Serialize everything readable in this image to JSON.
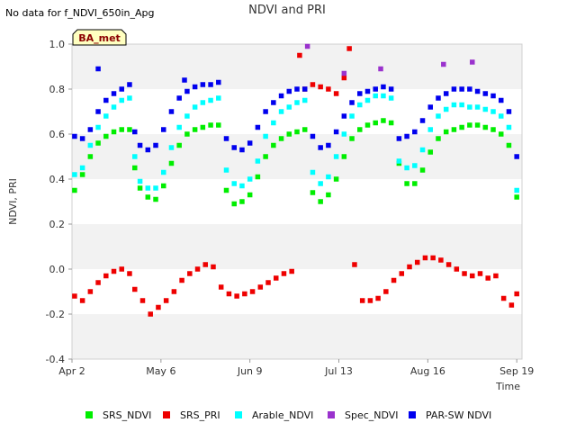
{
  "note": "No data for f_NDVI_650in_Apg",
  "badge": "BA_met",
  "colors": {
    "SRS_NDVI": "#00ee00",
    "SRS_PRI": "#ee0000",
    "Arable_NDVI": "#00ffff",
    "Spec_NDVI": "#9a32cd",
    "PAR-SW NDVI": "#0000ee"
  },
  "chart_data": {
    "type": "scatter",
    "title": "NDVI and PRI",
    "xlabel": "Time",
    "ylabel": "NDVI, PRI",
    "ylim": [
      -0.4,
      1.0
    ],
    "xlim": [
      "2024-04-02",
      "2024-09-21"
    ],
    "yticks": [
      "-0.4",
      "-0.2",
      "0.0",
      "0.2",
      "0.4",
      "0.6",
      "0.8",
      "1.0"
    ],
    "xticks": [
      {
        "date": "2024-04-02",
        "label": "Apr 2"
      },
      {
        "date": "2024-05-06",
        "label": "May 6"
      },
      {
        "date": "2024-06-09",
        "label": "Jun 9"
      },
      {
        "date": "2024-07-13",
        "label": "Jul 13"
      },
      {
        "date": "2024-08-16",
        "label": "Aug 16"
      },
      {
        "date": "2024-09-19",
        "label": "Sep 19"
      }
    ],
    "grid": "alternating horizontal bands",
    "legend": "bottom",
    "series": [
      {
        "name": "SRS_NDVI",
        "x": [
          "2024-04-03",
          "2024-04-06",
          "2024-04-09",
          "2024-04-12",
          "2024-04-15",
          "2024-04-18",
          "2024-04-21",
          "2024-04-24",
          "2024-04-26",
          "2024-04-28",
          "2024-05-01",
          "2024-05-04",
          "2024-05-07",
          "2024-05-10",
          "2024-05-13",
          "2024-05-16",
          "2024-05-19",
          "2024-05-22",
          "2024-05-25",
          "2024-05-28",
          "2024-05-31",
          "2024-06-03",
          "2024-06-06",
          "2024-06-09",
          "2024-06-12",
          "2024-06-15",
          "2024-06-18",
          "2024-06-21",
          "2024-06-24",
          "2024-06-27",
          "2024-06-30",
          "2024-07-03",
          "2024-07-06",
          "2024-07-09",
          "2024-07-12",
          "2024-07-15",
          "2024-07-18",
          "2024-07-21",
          "2024-07-24",
          "2024-07-27",
          "2024-07-30",
          "2024-08-02",
          "2024-08-05",
          "2024-08-08",
          "2024-08-11",
          "2024-08-14",
          "2024-08-17",
          "2024-08-20",
          "2024-08-23",
          "2024-08-26",
          "2024-08-29",
          "2024-09-01",
          "2024-09-04",
          "2024-09-07",
          "2024-09-10",
          "2024-09-13",
          "2024-09-16",
          "2024-09-19"
        ],
        "y": [
          0.35,
          0.42,
          0.5,
          0.56,
          0.59,
          0.61,
          0.62,
          0.62,
          0.45,
          0.36,
          0.32,
          0.31,
          0.37,
          0.47,
          0.55,
          0.6,
          0.62,
          0.63,
          0.64,
          0.64,
          0.35,
          0.29,
          0.3,
          0.33,
          0.41,
          0.5,
          0.55,
          0.58,
          0.6,
          0.61,
          0.62,
          0.34,
          0.3,
          0.33,
          0.4,
          0.5,
          0.58,
          0.62,
          0.64,
          0.65,
          0.66,
          0.65,
          0.47,
          0.38,
          0.38,
          0.44,
          0.52,
          0.58,
          0.61,
          0.62,
          0.63,
          0.64,
          0.64,
          0.63,
          0.62,
          0.6,
          0.55,
          0.32
        ]
      },
      {
        "name": "SRS_PRI",
        "x": [
          "2024-04-03",
          "2024-04-06",
          "2024-04-09",
          "2024-04-12",
          "2024-04-15",
          "2024-04-18",
          "2024-04-21",
          "2024-04-24",
          "2024-04-26",
          "2024-04-29",
          "2024-05-02",
          "2024-05-05",
          "2024-05-08",
          "2024-05-11",
          "2024-05-14",
          "2024-05-17",
          "2024-05-20",
          "2024-05-23",
          "2024-05-26",
          "2024-05-29",
          "2024-06-01",
          "2024-06-04",
          "2024-06-07",
          "2024-06-10",
          "2024-06-13",
          "2024-06-16",
          "2024-06-19",
          "2024-06-22",
          "2024-06-25",
          "2024-06-28",
          "2024-06-30",
          "2024-07-03",
          "2024-07-06",
          "2024-07-09",
          "2024-07-12",
          "2024-07-15",
          "2024-07-17",
          "2024-07-19",
          "2024-07-22",
          "2024-07-25",
          "2024-07-28",
          "2024-07-31",
          "2024-08-03",
          "2024-08-06",
          "2024-08-09",
          "2024-08-12",
          "2024-08-15",
          "2024-08-18",
          "2024-08-21",
          "2024-08-24",
          "2024-08-27",
          "2024-08-30",
          "2024-09-02",
          "2024-09-05",
          "2024-09-08",
          "2024-09-11",
          "2024-09-14",
          "2024-09-17",
          "2024-09-19"
        ],
        "y": [
          -0.12,
          -0.14,
          -0.1,
          -0.06,
          -0.03,
          -0.01,
          0.0,
          -0.02,
          -0.09,
          -0.14,
          -0.2,
          -0.17,
          -0.14,
          -0.1,
          -0.05,
          -0.02,
          0.0,
          0.02,
          0.01,
          -0.08,
          -0.11,
          -0.12,
          -0.11,
          -0.1,
          -0.08,
          -0.06,
          -0.04,
          -0.02,
          -0.01,
          0.95,
          0.8,
          0.82,
          0.81,
          0.8,
          0.78,
          0.85,
          0.98,
          0.02,
          -0.14,
          -0.14,
          -0.13,
          -0.1,
          -0.05,
          -0.02,
          0.01,
          0.03,
          0.05,
          0.05,
          0.04,
          0.02,
          0.0,
          -0.02,
          -0.03,
          -0.02,
          -0.04,
          -0.03,
          -0.13,
          -0.16,
          -0.11
        ]
      },
      {
        "name": "Arable_NDVI",
        "x": [
          "2024-04-03",
          "2024-04-06",
          "2024-04-09",
          "2024-04-12",
          "2024-04-15",
          "2024-04-18",
          "2024-04-21",
          "2024-04-24",
          "2024-04-26",
          "2024-04-28",
          "2024-05-01",
          "2024-05-04",
          "2024-05-07",
          "2024-05-10",
          "2024-05-13",
          "2024-05-16",
          "2024-05-19",
          "2024-05-22",
          "2024-05-25",
          "2024-05-28",
          "2024-05-31",
          "2024-06-03",
          "2024-06-06",
          "2024-06-09",
          "2024-06-12",
          "2024-06-15",
          "2024-06-18",
          "2024-06-21",
          "2024-06-24",
          "2024-06-27",
          "2024-06-30",
          "2024-07-03",
          "2024-07-06",
          "2024-07-09",
          "2024-07-12",
          "2024-07-15",
          "2024-07-18",
          "2024-07-21",
          "2024-07-24",
          "2024-07-27",
          "2024-07-30",
          "2024-08-02",
          "2024-08-05",
          "2024-08-08",
          "2024-08-11",
          "2024-08-14",
          "2024-08-17",
          "2024-08-20",
          "2024-08-23",
          "2024-08-26",
          "2024-08-29",
          "2024-09-01",
          "2024-09-04",
          "2024-09-07",
          "2024-09-10",
          "2024-09-13",
          "2024-09-16",
          "2024-09-19"
        ],
        "y": [
          0.42,
          0.45,
          0.55,
          0.63,
          0.68,
          0.72,
          0.75,
          0.76,
          0.5,
          0.39,
          0.36,
          0.36,
          0.43,
          0.54,
          0.63,
          0.68,
          0.72,
          0.74,
          0.75,
          0.76,
          0.44,
          0.38,
          0.37,
          0.4,
          0.48,
          0.59,
          0.65,
          0.7,
          0.72,
          0.74,
          0.75,
          0.43,
          0.38,
          0.41,
          0.5,
          0.6,
          0.68,
          0.73,
          0.75,
          0.77,
          0.77,
          0.76,
          0.48,
          0.45,
          0.46,
          0.53,
          0.62,
          0.68,
          0.71,
          0.73,
          0.73,
          0.72,
          0.72,
          0.71,
          0.7,
          0.68,
          0.63,
          0.35
        ]
      },
      {
        "name": "Spec_NDVI",
        "x": [
          "2024-07-01",
          "2024-07-15",
          "2024-07-29",
          "2024-08-22",
          "2024-09-02"
        ],
        "y": [
          0.99,
          0.87,
          0.89,
          0.91,
          0.92
        ]
      },
      {
        "name": "PAR-SW NDVI",
        "x": [
          "2024-04-03",
          "2024-04-06",
          "2024-04-09",
          "2024-04-12",
          "2024-04-15",
          "2024-04-18",
          "2024-04-21",
          "2024-04-24",
          "2024-04-26",
          "2024-04-28",
          "2024-05-01",
          "2024-05-04",
          "2024-05-07",
          "2024-05-10",
          "2024-05-13",
          "2024-05-16",
          "2024-05-19",
          "2024-05-22",
          "2024-05-25",
          "2024-05-28",
          "2024-05-31",
          "2024-06-03",
          "2024-06-06",
          "2024-06-09",
          "2024-06-12",
          "2024-06-15",
          "2024-06-18",
          "2024-06-21",
          "2024-06-24",
          "2024-06-27",
          "2024-06-30",
          "2024-07-03",
          "2024-07-06",
          "2024-07-09",
          "2024-07-12",
          "2024-07-15",
          "2024-07-18",
          "2024-07-21",
          "2024-07-24",
          "2024-07-27",
          "2024-07-30",
          "2024-08-02",
          "2024-08-05",
          "2024-08-08",
          "2024-08-11",
          "2024-08-14",
          "2024-08-17",
          "2024-08-20",
          "2024-08-23",
          "2024-08-26",
          "2024-08-29",
          "2024-09-01",
          "2024-09-04",
          "2024-09-07",
          "2024-09-10",
          "2024-09-13",
          "2024-09-16",
          "2024-09-19",
          "2024-04-12",
          "2024-05-15"
        ],
        "y": [
          0.59,
          0.58,
          0.62,
          0.7,
          0.75,
          0.78,
          0.8,
          0.82,
          0.61,
          0.55,
          0.53,
          0.55,
          0.62,
          0.7,
          0.76,
          0.79,
          0.81,
          0.82,
          0.82,
          0.83,
          0.58,
          0.54,
          0.53,
          0.56,
          0.63,
          0.7,
          0.74,
          0.77,
          0.79,
          0.8,
          0.8,
          0.59,
          0.54,
          0.55,
          0.61,
          0.68,
          0.74,
          0.78,
          0.79,
          0.8,
          0.81,
          0.8,
          0.58,
          0.59,
          0.61,
          0.66,
          0.72,
          0.76,
          0.78,
          0.8,
          0.8,
          0.8,
          0.79,
          0.78,
          0.77,
          0.75,
          0.7,
          0.5,
          0.89,
          0.84
        ]
      }
    ]
  }
}
